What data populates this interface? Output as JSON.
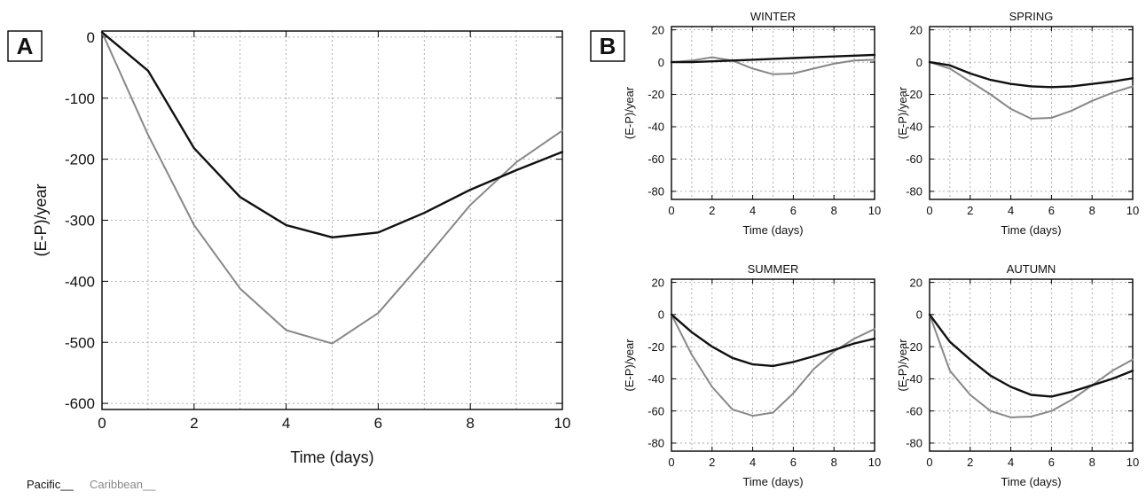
{
  "panel_labels": [
    "A",
    "B"
  ],
  "legend": {
    "pacific": "Pacific__",
    "caribbean": "Caribbean__"
  },
  "colors": {
    "pacific": "#111111",
    "caribbean": "#888888"
  },
  "chart_data": [
    {
      "panel": "A",
      "type": "line",
      "title": "",
      "xlabel": "Time (days)",
      "ylabel": "(E-P)/year",
      "xlim": [
        0,
        10
      ],
      "ylim": [
        -610,
        10
      ],
      "xticks": [
        0,
        2,
        4,
        6,
        8,
        10
      ],
      "yticks": [
        0,
        -100,
        -200,
        -300,
        -400,
        -500,
        -600
      ],
      "grid": true,
      "x": [
        0,
        1,
        2,
        3,
        4,
        5,
        6,
        7,
        8,
        9,
        10
      ],
      "series": [
        {
          "name": "Pacific",
          "values": [
            8,
            -55,
            -182,
            -262,
            -308,
            -328,
            -320,
            -288,
            -250,
            -218,
            -188
          ]
        },
        {
          "name": "Caribbean",
          "values": [
            8,
            -160,
            -308,
            -412,
            -480,
            -502,
            -452,
            -365,
            -275,
            -205,
            -153
          ]
        }
      ]
    },
    {
      "panel": "B",
      "type": "line",
      "title": "WINTER",
      "xlabel": "Time (days)",
      "ylabel": "(E-P)/year",
      "xlim": [
        0,
        10
      ],
      "ylim": [
        -85,
        22
      ],
      "xticks": [
        0,
        2,
        4,
        6,
        8,
        10
      ],
      "yticks": [
        20,
        0,
        -20,
        -40,
        -60,
        -80
      ],
      "grid": true,
      "x": [
        0,
        1,
        2,
        3,
        4,
        5,
        6,
        7,
        8,
        9,
        10
      ],
      "series": [
        {
          "name": "Pacific",
          "values": [
            0,
            0,
            0.5,
            1,
            1.5,
            2,
            2.5,
            3,
            3.5,
            4,
            4.5
          ]
        },
        {
          "name": "Caribbean",
          "values": [
            0,
            1,
            3,
            1,
            -4,
            -7.5,
            -7,
            -4,
            -1,
            1,
            1.5
          ]
        }
      ]
    },
    {
      "panel": "B",
      "type": "line",
      "title": "SPRING",
      "xlabel": "Time (days)",
      "ylabel": "(E-P)/year",
      "xlim": [
        0,
        10
      ],
      "ylim": [
        -85,
        22
      ],
      "xticks": [
        0,
        2,
        4,
        6,
        8,
        10
      ],
      "yticks": [
        20,
        0,
        -20,
        -40,
        -60,
        -80
      ],
      "grid": true,
      "x": [
        0,
        1,
        2,
        3,
        4,
        5,
        6,
        7,
        8,
        9,
        10
      ],
      "series": [
        {
          "name": "Pacific",
          "values": [
            0,
            -2,
            -7,
            -11,
            -13.5,
            -15,
            -15.5,
            -15,
            -13.5,
            -12,
            -10
          ]
        },
        {
          "name": "Caribbean",
          "values": [
            0,
            -4,
            -12,
            -20,
            -29,
            -35,
            -34.5,
            -30,
            -24,
            -19,
            -15
          ]
        }
      ]
    },
    {
      "panel": "B",
      "type": "line",
      "title": "SUMMER",
      "xlabel": "Time (days)",
      "ylabel": "(E-P)/year",
      "xlim": [
        0,
        10
      ],
      "ylim": [
        -85,
        22
      ],
      "xticks": [
        0,
        2,
        4,
        6,
        8,
        10
      ],
      "yticks": [
        20,
        0,
        -20,
        -40,
        -60,
        -80
      ],
      "grid": true,
      "x": [
        0,
        1,
        2,
        3,
        4,
        5,
        6,
        7,
        8,
        9,
        10
      ],
      "series": [
        {
          "name": "Pacific",
          "values": [
            0,
            -11,
            -20,
            -27,
            -31,
            -32,
            -29.5,
            -26,
            -22,
            -18,
            -15
          ]
        },
        {
          "name": "Caribbean",
          "values": [
            0,
            -25,
            -45,
            -59,
            -63,
            -61,
            -49,
            -34,
            -23,
            -15,
            -9
          ]
        }
      ]
    },
    {
      "panel": "B",
      "type": "line",
      "title": "AUTUMN",
      "xlabel": "Time (days)",
      "ylabel": "(E-P)/year",
      "xlim": [
        0,
        10
      ],
      "ylim": [
        -85,
        22
      ],
      "xticks": [
        0,
        2,
        4,
        6,
        8,
        10
      ],
      "yticks": [
        20,
        0,
        -20,
        -40,
        -60,
        -80
      ],
      "grid": true,
      "x": [
        0,
        1,
        2,
        3,
        4,
        5,
        6,
        7,
        8,
        9,
        10
      ],
      "series": [
        {
          "name": "Pacific",
          "values": [
            0,
            -17,
            -28,
            -38,
            -45,
            -50,
            -51,
            -48,
            -44,
            -40,
            -35
          ]
        },
        {
          "name": "Caribbean",
          "values": [
            0,
            -35,
            -50,
            -60,
            -64,
            -63.5,
            -60,
            -53,
            -44,
            -35,
            -28
          ]
        }
      ]
    }
  ]
}
